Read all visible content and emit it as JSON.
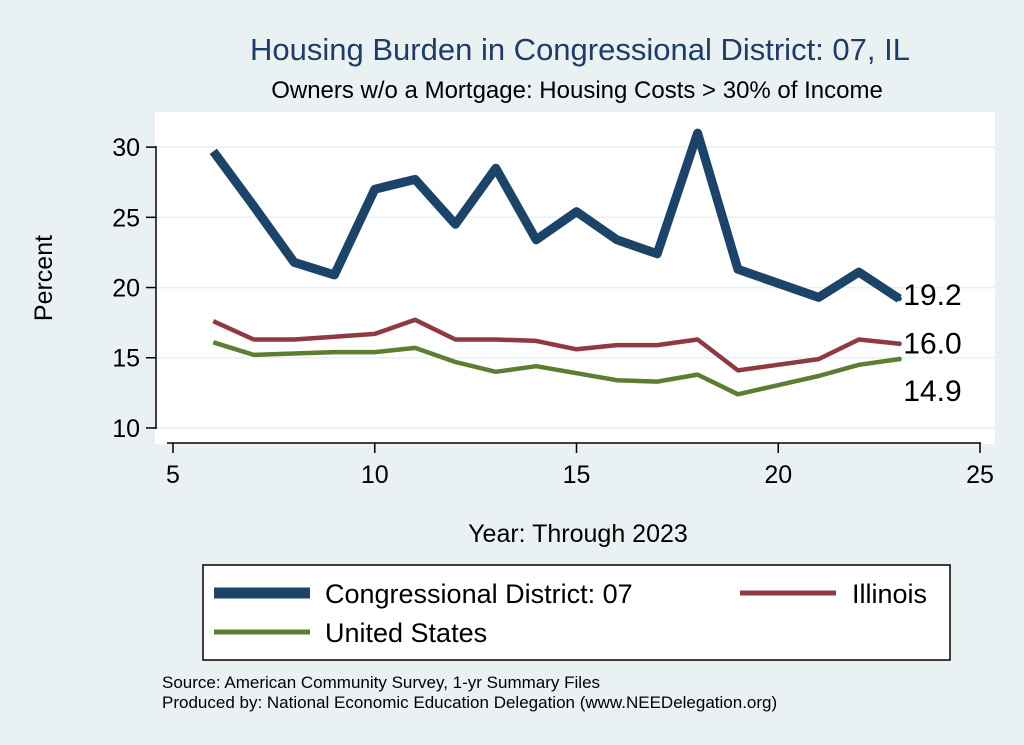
{
  "colors": {
    "background": "#eaf1f3",
    "plot_background": "#ffffff",
    "district": "#1b4468",
    "illinois": "#8f3a43",
    "us": "#5b7e33",
    "title": "#1e3d66"
  },
  "chart_data": {
    "type": "line",
    "title": "Housing Burden in Congressional District:  07, IL",
    "subtitle": "Owners w/o a Mortgage: Housing Costs > 30% of Income",
    "xlabel": "Year: Through 2023",
    "ylabel": "Percent",
    "xlim": [
      5,
      25
    ],
    "ylim": [
      9,
      32.5
    ],
    "xticks": [
      5,
      10,
      15,
      20,
      25
    ],
    "yticks": [
      10,
      15,
      20,
      25,
      30
    ],
    "grid": true,
    "legend_position": "bottom",
    "series": [
      {
        "name": "Congressional District:  07",
        "key": "district",
        "x": [
          6,
          7,
          8,
          9,
          10,
          11,
          12,
          13,
          14,
          15,
          16,
          17,
          18,
          19,
          21,
          22,
          23
        ],
        "values": [
          29.7,
          25.8,
          21.8,
          20.9,
          27.0,
          27.7,
          24.5,
          28.5,
          23.4,
          25.4,
          23.4,
          22.4,
          31.0,
          21.3,
          19.3,
          21.1,
          19.2
        ],
        "end_label": "19.2"
      },
      {
        "name": "Illinois",
        "key": "illinois",
        "x": [
          6,
          7,
          8,
          9,
          10,
          11,
          12,
          13,
          14,
          15,
          16,
          17,
          18,
          19,
          21,
          22,
          23
        ],
        "values": [
          17.6,
          16.3,
          16.3,
          16.5,
          16.7,
          17.7,
          16.3,
          16.3,
          16.2,
          15.6,
          15.9,
          15.9,
          16.3,
          14.1,
          14.9,
          16.3,
          16.0
        ],
        "end_label": "16.0"
      },
      {
        "name": "United States",
        "key": "us",
        "x": [
          6,
          7,
          8,
          9,
          10,
          11,
          12,
          13,
          14,
          15,
          16,
          17,
          18,
          19,
          21,
          22,
          23
        ],
        "values": [
          16.1,
          15.2,
          15.3,
          15.4,
          15.4,
          15.7,
          14.7,
          14.0,
          14.4,
          13.9,
          13.4,
          13.3,
          13.8,
          12.4,
          13.7,
          14.5,
          14.9
        ],
        "end_label": "14.9"
      }
    ]
  },
  "footer": {
    "source": "Source: American Community Survey, 1-yr Summary Files",
    "produced_by": "Produced by: National Economic Education Delegation (www.NEEDelegation.org)"
  }
}
